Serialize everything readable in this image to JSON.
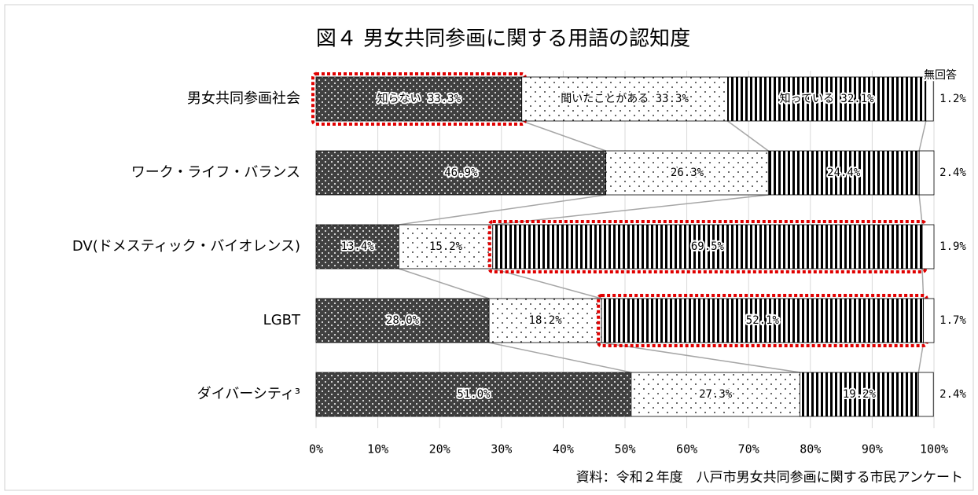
{
  "chart_data": {
    "type": "stacked-bar-horizontal",
    "title": "図４ 男女共同参画に関する用語の認知度",
    "source": "資料：令和２年度　八戸市男女共同参画に関する市民アンケート",
    "categories": [
      "男女共同参画社会",
      "ワーク・ライフ・バランス",
      "DV(ドメスティック・バイオレンス)",
      "LGBT",
      "ダイバーシティ³"
    ],
    "series": [
      {
        "name": "知らない",
        "color": "#404040",
        "pattern": "dots",
        "highlight": [
          0
        ],
        "values": [
          33.3,
          46.9,
          13.4,
          28.0,
          51.0
        ],
        "value_labels": [
          "33.3%",
          "46.9%",
          "13.4%",
          "28.0%",
          "51.0%"
        ]
      },
      {
        "name": "聞いたことがある",
        "color": "#ffffff",
        "pattern": "sparse-dots",
        "highlight": [],
        "values": [
          33.3,
          26.3,
          15.2,
          18.2,
          27.3
        ],
        "value_labels": [
          "33.3%",
          "26.3%",
          "15.2%",
          "18.2%",
          "27.3%"
        ]
      },
      {
        "name": "知っている",
        "color": "#ffffff",
        "pattern": "stripes",
        "highlight": [
          2,
          3
        ],
        "values": [
          32.1,
          24.4,
          69.5,
          52.1,
          19.2
        ],
        "value_labels": [
          "32.1%",
          "24.4%",
          "69.5%",
          "52.1%",
          "19.2%"
        ]
      },
      {
        "name": "無回答",
        "color": "#ffffff",
        "pattern": "none",
        "highlight": [],
        "values": [
          1.2,
          2.4,
          1.9,
          1.7,
          2.4
        ],
        "value_labels": [
          "1.2%",
          "2.4%",
          "1.9%",
          "1.7%",
          "2.4%"
        ]
      }
    ],
    "xlim": [
      0,
      100
    ],
    "xticks": [
      {
        "value": 0,
        "label": "0%"
      },
      {
        "value": 10,
        "label": "10%"
      },
      {
        "value": 20,
        "label": "20%"
      },
      {
        "value": 30,
        "label": "30%"
      },
      {
        "value": 40,
        "label": "40%"
      },
      {
        "value": 50,
        "label": "50%"
      },
      {
        "value": 60,
        "label": "60%"
      },
      {
        "value": 70,
        "label": "70%"
      },
      {
        "value": 80,
        "label": "80%"
      },
      {
        "value": 90,
        "label": "90%"
      },
      {
        "value": 100,
        "label": "100%"
      }
    ],
    "grid": true,
    "connectors": true
  }
}
